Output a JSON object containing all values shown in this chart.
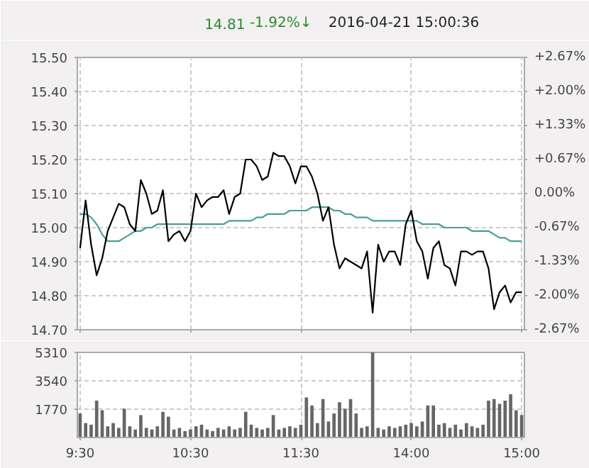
{
  "chart_data": [
    {
      "type": "line",
      "title": "2016-04-21 15:00:36",
      "annotations": [
        "14.81",
        "-1.92%↓"
      ],
      "categories": [
        null,
        null,
        null,
        null,
        null,
        null,
        null,
        null,
        null,
        null,
        null,
        null,
        null,
        null,
        null,
        null,
        null,
        null,
        null,
        null,
        null,
        null,
        null,
        null,
        null,
        null,
        null,
        null,
        null,
        null,
        null,
        null,
        null,
        null,
        null,
        null,
        null,
        null,
        null,
        null,
        null,
        null,
        null,
        null,
        null,
        null,
        null,
        null,
        null,
        null,
        null,
        null,
        null,
        null,
        null,
        null,
        null,
        null,
        null,
        null,
        null,
        null,
        null,
        null,
        null,
        null,
        null,
        null,
        null,
        null,
        null,
        null,
        null,
        null,
        null,
        null,
        null,
        null,
        null,
        null,
        null
      ],
      "ylim": [
        14.7,
        15.5
      ],
      "yticks": [
        {
          "value": 14.7,
          "label": "14.70"
        },
        {
          "value": 14.8,
          "label": "14.80"
        },
        {
          "value": 14.9,
          "label": "14.90"
        },
        {
          "value": 15.0,
          "label": "15.00"
        },
        {
          "value": 15.1,
          "label": "15.10"
        },
        {
          "value": 15.2,
          "label": "15.20"
        },
        {
          "value": 15.3,
          "label": "15.30"
        },
        {
          "value": 15.4,
          "label": "15.40"
        },
        {
          "value": 15.5,
          "label": "15.50"
        }
      ],
      "y2lim": [
        -2.67,
        2.67
      ],
      "y2ticks": [
        {
          "value": -2.67,
          "label": "-2.67%"
        },
        {
          "value": -2.0,
          "label": "-2.00%"
        },
        {
          "value": -1.33,
          "label": "-1.33%"
        },
        {
          "value": -0.67,
          "label": "-0.67%"
        },
        {
          "value": 0,
          "label": "0.00%"
        },
        {
          "value": 0.67,
          "label": "+0.67%"
        },
        {
          "value": 1.33,
          "label": "+1.33%"
        },
        {
          "value": 2.0,
          "label": "+2.00%"
        },
        {
          "value": 2.67,
          "label": "+2.67%"
        }
      ],
      "tick_labels": "y",
      "grid": true,
      "series": [
        {
          "color": "#4b9c9c",
          "values": [
            15.04,
            15.04,
            15.03,
            15.01,
            14.98,
            14.96,
            14.96,
            14.96,
            14.97,
            14.98,
            14.99,
            14.99,
            15.0,
            15.0,
            15.01,
            15.01,
            15.01,
            15.01,
            15.01,
            15.01,
            15.01,
            15.01,
            15.01,
            15.01,
            15.01,
            15.01,
            15.01,
            15.02,
            15.02,
            15.02,
            15.02,
            15.02,
            15.03,
            15.03,
            15.04,
            15.04,
            15.04,
            15.04,
            15.05,
            15.05,
            15.05,
            15.05,
            15.06,
            15.06,
            15.06,
            15.06,
            15.05,
            15.05,
            15.04,
            15.04,
            15.03,
            15.03,
            15.03,
            15.02,
            15.02,
            15.02,
            15.02,
            15.02,
            15.02,
            15.02,
            15.02,
            15.02,
            15.01,
            15.01,
            15.01,
            15.01,
            15.0,
            15.0,
            15.0,
            15.0,
            15.0,
            14.99,
            14.99,
            14.99,
            14.99,
            14.98,
            14.97,
            14.97,
            14.96,
            14.96,
            14.96
          ]
        },
        {
          "color": "#000000",
          "values": [
            14.94,
            15.08,
            14.95,
            14.86,
            14.91,
            14.99,
            15.03,
            15.07,
            15.06,
            15.01,
            14.99,
            15.14,
            15.1,
            15.04,
            15.05,
            15.11,
            14.96,
            14.98,
            14.99,
            14.96,
            14.99,
            15.1,
            15.06,
            15.08,
            15.09,
            15.09,
            15.11,
            15.04,
            15.09,
            15.1,
            15.2,
            15.2,
            15.18,
            15.14,
            15.15,
            15.22,
            15.21,
            15.21,
            15.18,
            15.13,
            15.18,
            15.18,
            15.15,
            15.1,
            15.02,
            15.06,
            14.95,
            14.88,
            14.91,
            14.9,
            14.89,
            14.88,
            14.93,
            14.75,
            14.95,
            14.9,
            14.93,
            14.93,
            14.89,
            15.01,
            15.05,
            14.96,
            14.93,
            14.85,
            14.94,
            14.96,
            14.89,
            14.88,
            14.83,
            14.93,
            14.93,
            14.92,
            14.93,
            14.93,
            14.88,
            14.76,
            14.81,
            14.83,
            14.78,
            14.81,
            14.81
          ]
        }
      ]
    },
    {
      "type": "bar",
      "categories": [
        "9:30",
        null,
        null,
        null,
        null,
        null,
        null,
        null,
        null,
        null,
        null,
        null,
        null,
        null,
        null,
        null,
        null,
        null,
        null,
        null,
        "10:30",
        null,
        null,
        null,
        null,
        null,
        null,
        null,
        null,
        null,
        null,
        null,
        null,
        null,
        null,
        null,
        null,
        null,
        null,
        null,
        "11:30",
        null,
        null,
        null,
        null,
        null,
        null,
        null,
        null,
        null,
        null,
        null,
        null,
        null,
        null,
        null,
        null,
        null,
        null,
        null,
        "14:00",
        null,
        null,
        null,
        null,
        null,
        null,
        null,
        null,
        null,
        null,
        null,
        null,
        null,
        null,
        null,
        null,
        null,
        null,
        null,
        "15:00"
      ],
      "ylim": [
        0,
        5310
      ],
      "yticks": [
        1770,
        3540,
        5310
      ],
      "grid": true,
      "series": [
        {
          "color": "#666666",
          "values": [
            1500,
            900,
            800,
            2300,
            1700,
            700,
            900,
            600,
            1800,
            700,
            500,
            1400,
            600,
            500,
            700,
            1600,
            1300,
            500,
            600,
            400,
            500,
            700,
            800,
            500,
            400,
            600,
            500,
            700,
            500,
            600,
            1600,
            800,
            600,
            500,
            600,
            1400,
            500,
            600,
            700,
            600,
            800,
            2500,
            2000,
            900,
            2400,
            1000,
            1500,
            2200,
            1800,
            2400,
            1500,
            600,
            700,
            5300,
            600,
            500,
            700,
            600,
            700,
            800,
            900,
            700,
            1000,
            2000,
            2000,
            800,
            900,
            600,
            800,
            500,
            900,
            700,
            600,
            800,
            2300,
            2400,
            2100,
            2300,
            2700,
            1700,
            1400
          ]
        }
      ]
    }
  ]
}
